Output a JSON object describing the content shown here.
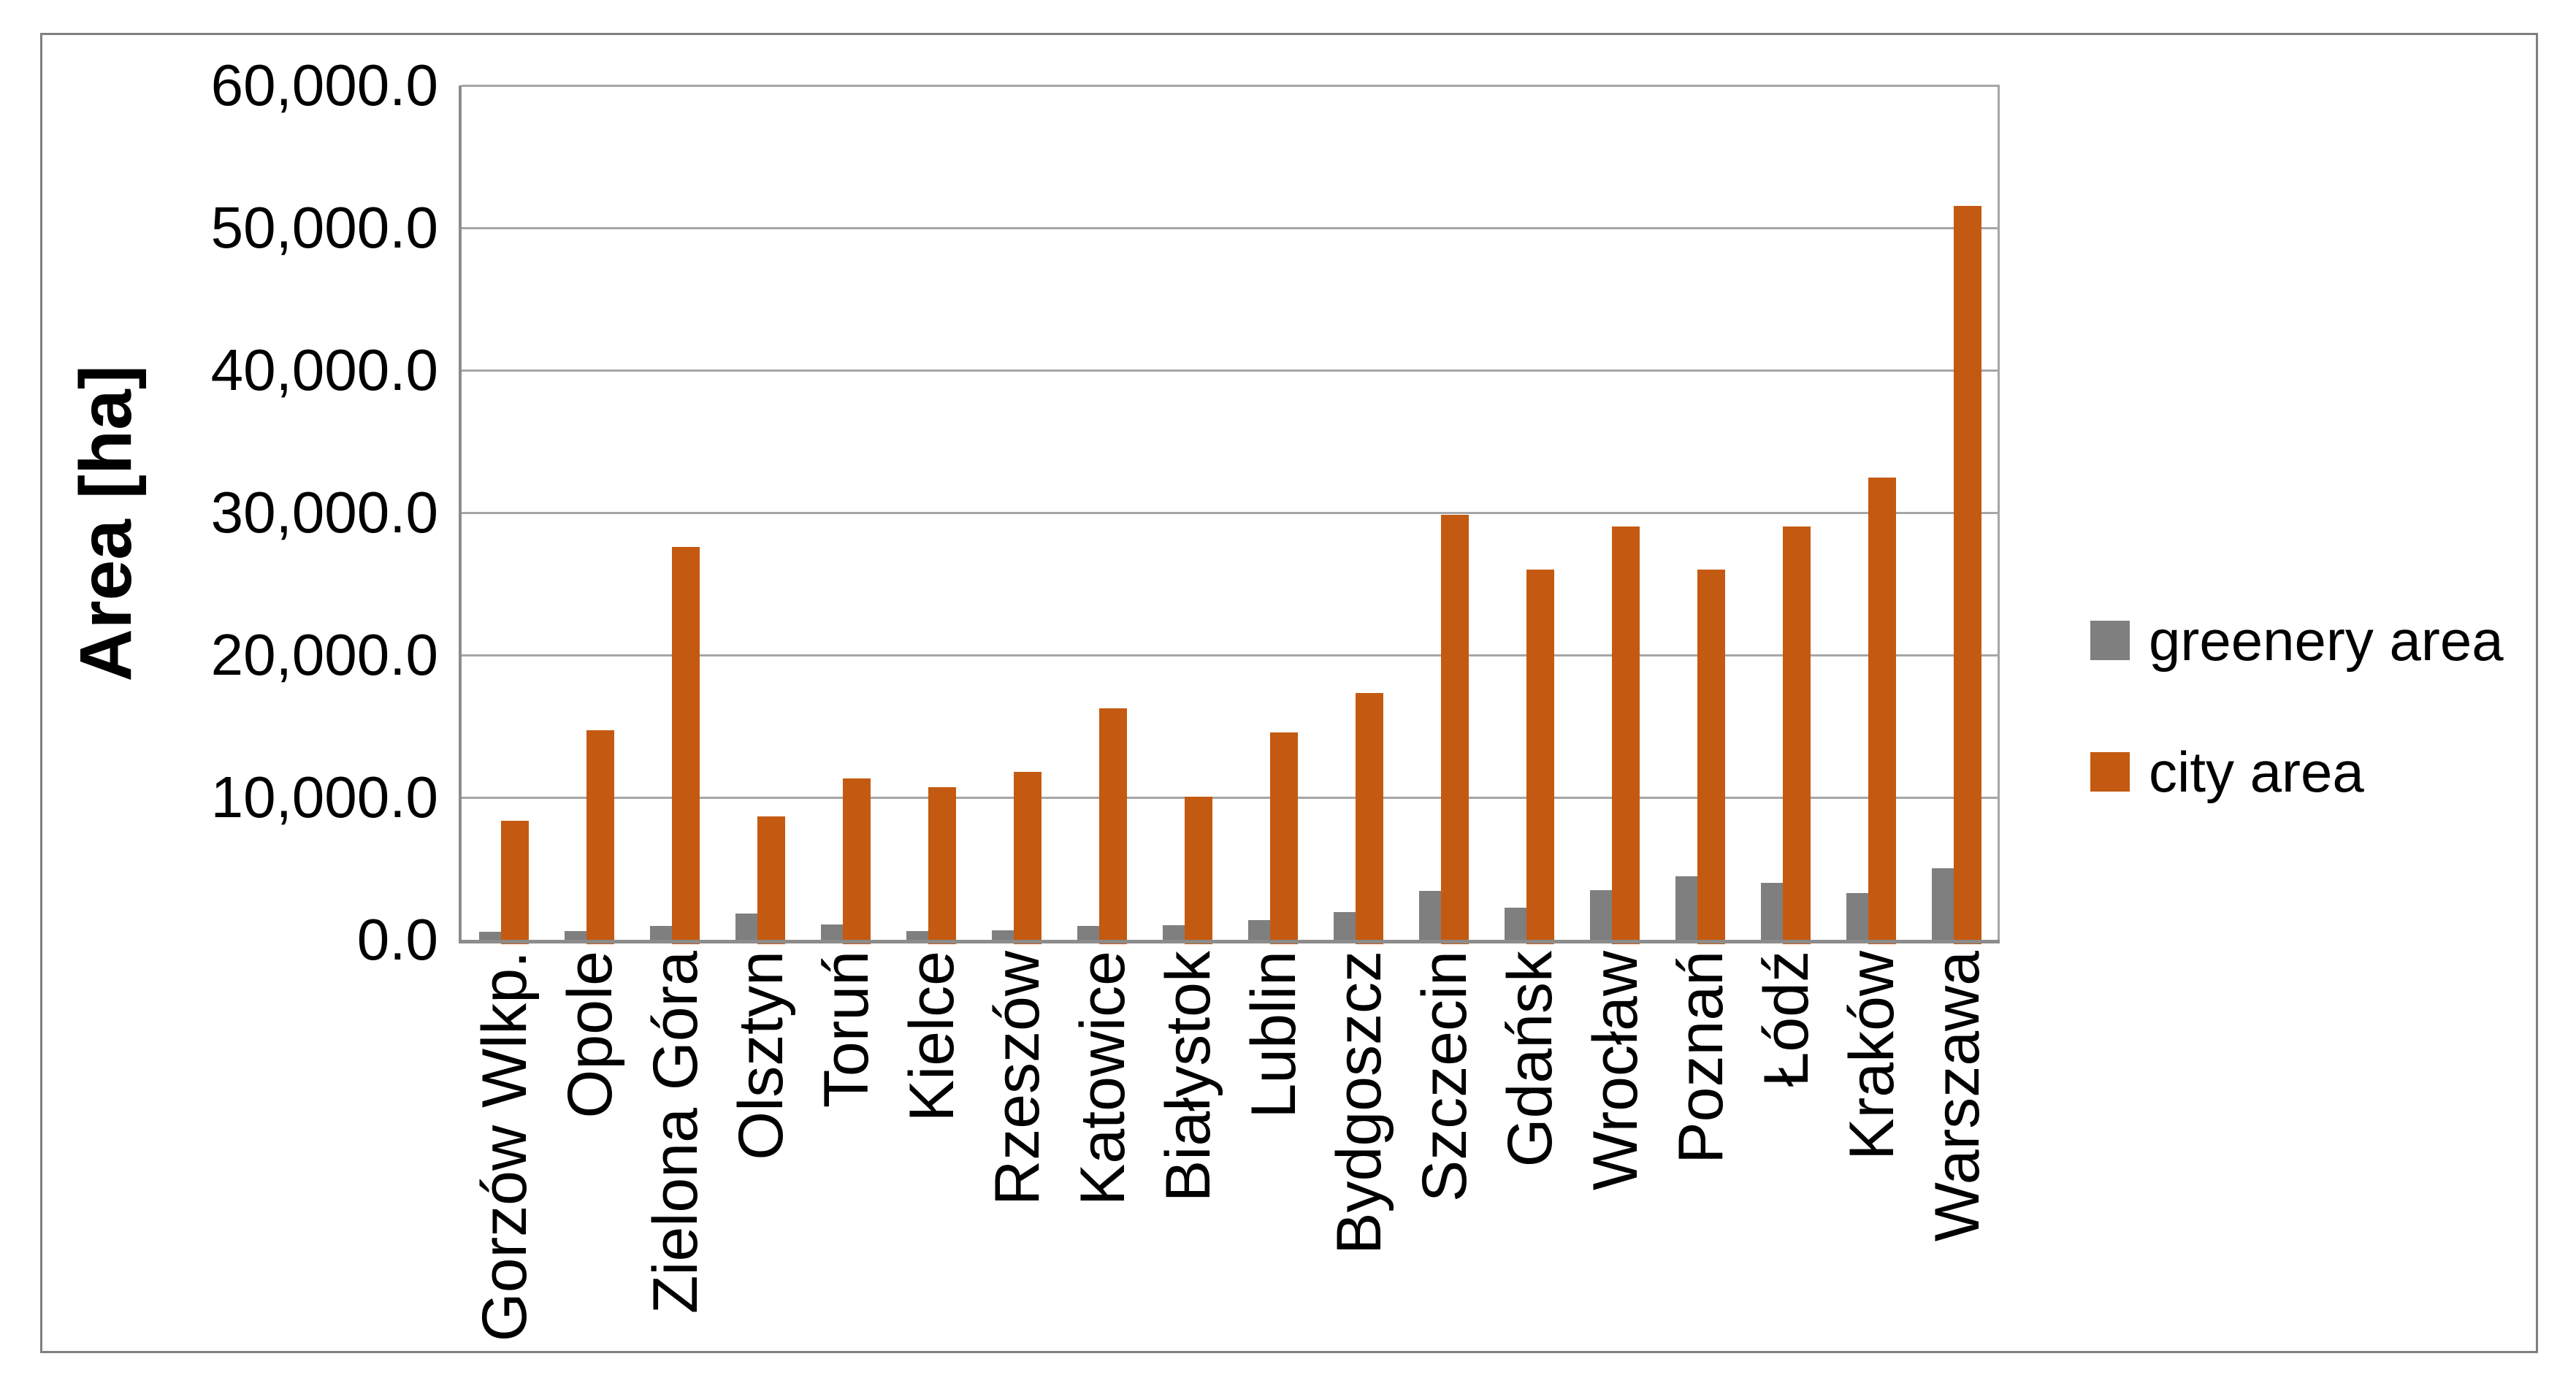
{
  "chart_data": {
    "type": "bar",
    "title": "",
    "ylabel": "Area [ha]",
    "xlabel": "",
    "categories": [
      "Gorzów Wlkp.",
      "Opole",
      "Zielona Góra",
      "Olsztyn",
      "Toruń",
      "Kielce",
      "Rzeszów",
      "Katowice",
      "Białystok",
      "Lublin",
      "Bydgoszcz",
      "Szczecin",
      "Gdańsk",
      "Wrocław",
      "Poznań",
      "Łódź",
      "Kraków",
      "Warszawa"
    ],
    "series": [
      {
        "name": "greenery area",
        "color": "#7f7f7f",
        "values": [
          550,
          600,
          950,
          1850,
          1100,
          600,
          650,
          950,
          1050,
          1400,
          1950,
          3450,
          2250,
          3500,
          4450,
          4000,
          3300,
          5000
        ]
      },
      {
        "name": "city area",
        "color": "#c45a11",
        "values": [
          8650,
          15000,
          27900,
          8950,
          11650,
          11000,
          12100,
          16550,
          10350,
          14850,
          17650,
          30150,
          26300,
          29350,
          26300,
          29350,
          32750,
          51850
        ]
      }
    ],
    "ylim": [
      0,
      60000
    ],
    "y_tick_step": 10000,
    "y_ticks": [
      "60,000.0",
      "50,000.0",
      "40,000.0",
      "30,000.0",
      "20,000.0",
      "10,000.0",
      "0.0"
    ],
    "grid": true,
    "legend_position": "right"
  },
  "style": {
    "gridline_color": "#a6a6a6",
    "axis_color": "#8c8c8c",
    "frame_color": "#7f7f7f",
    "background": "#ffffff",
    "text_color": "#000000"
  }
}
